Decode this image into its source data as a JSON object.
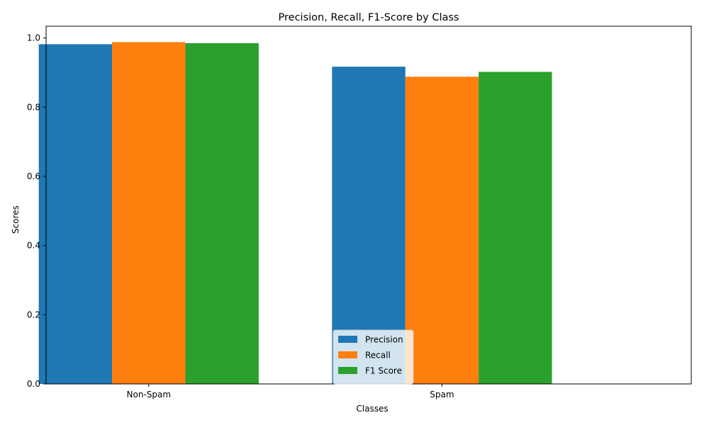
{
  "chart_data": {
    "type": "bar",
    "title": "Precision, Recall, F1-Score by Class",
    "xlabel": "Classes",
    "ylabel": "Scores",
    "categories": [
      "Non-Spam",
      "Spam"
    ],
    "series": [
      {
        "name": "Precision",
        "color": "#1f77b4",
        "values": [
          0.982,
          0.917
        ]
      },
      {
        "name": "Recall",
        "color": "#ff7f0e",
        "values": [
          0.988,
          0.888
        ]
      },
      {
        "name": "F1 Score",
        "color": "#2ca02c",
        "values": [
          0.985,
          0.902
        ]
      }
    ],
    "ylim": [
      0,
      1.034
    ],
    "yticks": [
      "0.0",
      "0.2",
      "0.4",
      "0.6",
      "0.8",
      "1.0"
    ],
    "grid": false,
    "legend_position": "bottom-center"
  }
}
